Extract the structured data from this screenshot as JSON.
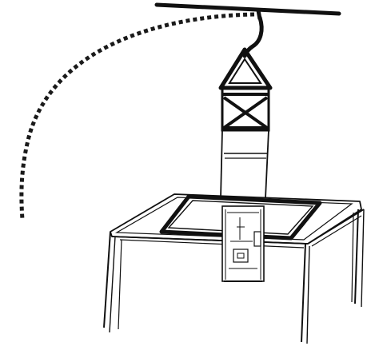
{
  "diagram": {
    "subject": "hoist-lowering-module-into-cabinet",
    "colors": {
      "background": "#ffffff",
      "ink": "#111111",
      "dash": "#1a1a1a",
      "opening_fill": "#ffffff"
    },
    "components": [
      "overhead-rail",
      "hook",
      "lifting-sling",
      "top-cross-brace",
      "module-body",
      "cabinet-top-opening",
      "cabinet-frame",
      "swing-arc-path"
    ]
  }
}
